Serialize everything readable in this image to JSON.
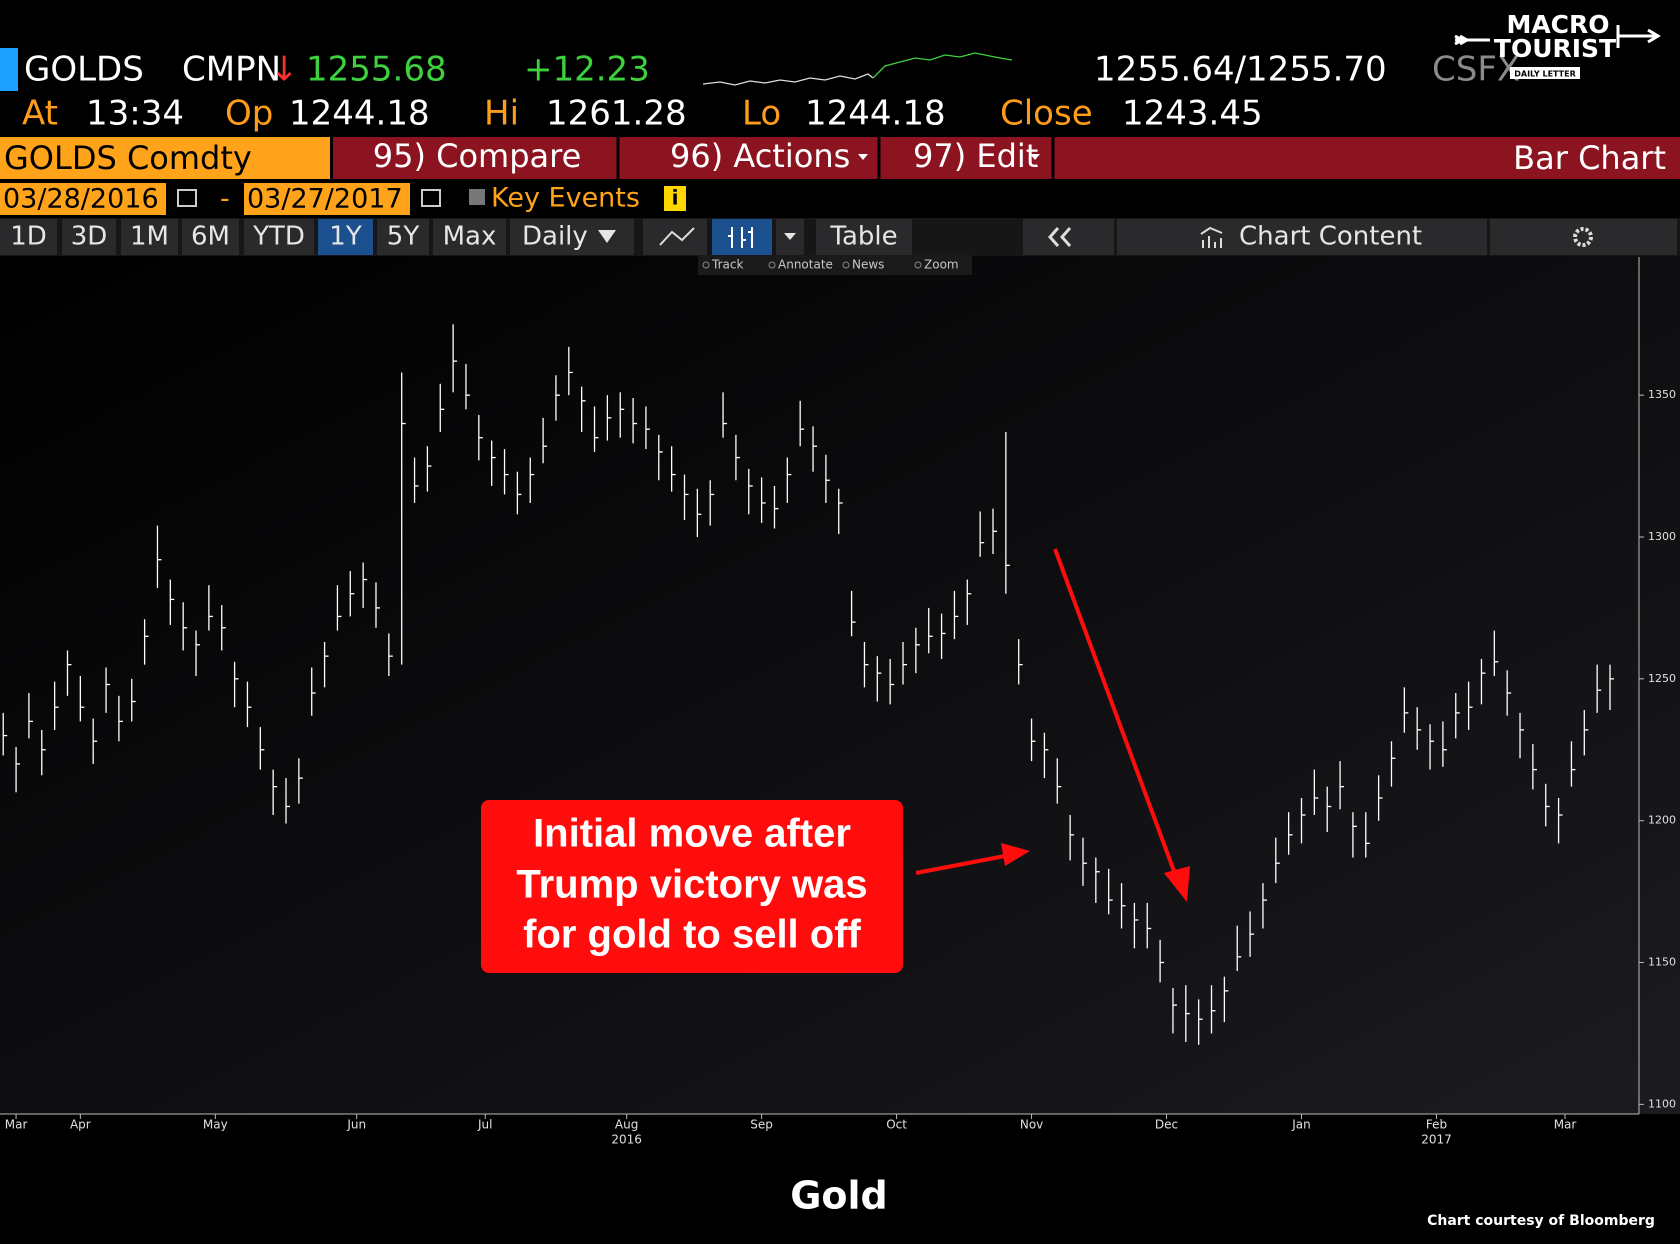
{
  "header": {
    "ticker": "GOLDS",
    "source": "CMPN",
    "change_arrow": "↓",
    "last": "1255.68",
    "change": "+12.23",
    "bid_ask": "1255.64/1255.70",
    "pricing_source": "CSFX",
    "time_label": "At",
    "time": "13:34",
    "open_label": "Op",
    "open": "1244.18",
    "high_label": "Hi",
    "high": "1261.28",
    "low_label": "Lo",
    "low": "1244.18",
    "close_label": "Close",
    "close": "1243.45"
  },
  "logo": {
    "line1": "MACRO",
    "line2": "TOURIST",
    "line3": "DAILY LETTER"
  },
  "toolbar": {
    "security": "GOLDS Comdty",
    "menus": [
      "95) Compare",
      "96) Actions",
      "97) Edit"
    ],
    "view": "Bar Chart",
    "start_date": "03/28/2016",
    "date_separator": "-",
    "end_date": "03/27/2017",
    "key_events": "Key Events",
    "info": "i",
    "periods": [
      "1D",
      "3D",
      "1M",
      "6M",
      "YTD",
      "1Y",
      "5Y",
      "Max"
    ],
    "frequency": "Daily",
    "table": "Table",
    "chart_content": "Chart Content",
    "tools": [
      "Track",
      "Annotate",
      "News",
      "Zoom"
    ]
  },
  "chart_data": {
    "type": "ohlc",
    "title": "Gold",
    "source_note": "Chart courtesy of Bloomberg",
    "annotation_lines": [
      "Initial move after",
      "Trump victory was",
      "for gold to sell off"
    ],
    "color": "#ffffff",
    "annotation_color": "#ff0d0d",
    "x": [
      0,
      2,
      4,
      6,
      8,
      10,
      12,
      14,
      16,
      18,
      20,
      22,
      24,
      26,
      28,
      30,
      32,
      34,
      36,
      38,
      40,
      42,
      44,
      46,
      48,
      50,
      52,
      54,
      56,
      58,
      60,
      62,
      64,
      66,
      68,
      70,
      72,
      74,
      76,
      78,
      80,
      82,
      84,
      86,
      88,
      90,
      92,
      94,
      96,
      98,
      100,
      102,
      104,
      106,
      108,
      110,
      112,
      114,
      116,
      118,
      120,
      122,
      124,
      126,
      128,
      130,
      132,
      134,
      136,
      138,
      140,
      142,
      144,
      146,
      148,
      150,
      152,
      154,
      156,
      158,
      160,
      162,
      164,
      166,
      168,
      170,
      172,
      174,
      176,
      178,
      180,
      182,
      184,
      186,
      188,
      190,
      192,
      194,
      196,
      198,
      200,
      202,
      204,
      206,
      208,
      210,
      212,
      214,
      216,
      218,
      220,
      222,
      224,
      226,
      228,
      230,
      232,
      234,
      236,
      238,
      240,
      242,
      244,
      246,
      248,
      250
    ],
    "high": [
      1238,
      1226,
      1245,
      1232,
      1249,
      1260,
      1251,
      1236,
      1254,
      1244,
      1250,
      1271,
      1304,
      1285,
      1277,
      1267,
      1283,
      1276,
      1256,
      1249,
      1233,
      1218,
      1215,
      1222,
      1254,
      1263,
      1283,
      1288,
      1291,
      1284,
      1266,
      1358,
      1328,
      1332,
      1354,
      1375,
      1361,
      1343,
      1334,
      1331,
      1323,
      1328,
      1342,
      1357,
      1367,
      1353,
      1346,
      1350,
      1351,
      1349,
      1346,
      1336,
      1332,
      1322,
      1317,
      1320,
      1351,
      1336,
      1324,
      1321,
      1318,
      1328,
      1348,
      1339,
      1329,
      1317,
      1281,
      1263,
      1258,
      1257,
      1263,
      1268,
      1275,
      1273,
      1281,
      1285,
      1309,
      1310,
      1337,
      1264,
      1236,
      1231,
      1222,
      1202,
      1194,
      1187,
      1183,
      1178,
      1171,
      1171,
      1158,
      1141,
      1142,
      1137,
      1142,
      1145,
      1163,
      1168,
      1178,
      1194,
      1203,
      1208,
      1218,
      1212,
      1221,
      1203,
      1203,
      1216,
      1228,
      1247,
      1240,
      1234,
      1235,
      1245,
      1249,
      1257,
      1267,
      1253,
      1238,
      1227,
      1213,
      1208,
      1228,
      1239,
      1255,
      1255
    ],
    "low": [
      1223,
      1210,
      1229,
      1216,
      1232,
      1244,
      1235,
      1220,
      1238,
      1228,
      1235,
      1255,
      1282,
      1269,
      1260,
      1251,
      1267,
      1260,
      1240,
      1233,
      1218,
      1202,
      1199,
      1206,
      1237,
      1247,
      1267,
      1272,
      1275,
      1268,
      1251,
      1255,
      1312,
      1316,
      1337,
      1351,
      1345,
      1327,
      1318,
      1315,
      1308,
      1312,
      1326,
      1341,
      1350,
      1337,
      1330,
      1334,
      1335,
      1333,
      1331,
      1320,
      1316,
      1306,
      1300,
      1304,
      1335,
      1320,
      1308,
      1305,
      1303,
      1312,
      1332,
      1323,
      1312,
      1301,
      1265,
      1247,
      1242,
      1241,
      1248,
      1252,
      1259,
      1257,
      1264,
      1269,
      1293,
      1294,
      1280,
      1248,
      1221,
      1215,
      1206,
      1186,
      1177,
      1171,
      1167,
      1162,
      1155,
      1155,
      1143,
      1125,
      1122,
      1121,
      1125,
      1129,
      1147,
      1152,
      1162,
      1178,
      1188,
      1192,
      1202,
      1196,
      1204,
      1187,
      1187,
      1200,
      1212,
      1231,
      1225,
      1218,
      1219,
      1229,
      1232,
      1241,
      1251,
      1237,
      1222,
      1211,
      1198,
      1192,
      1212,
      1223,
      1238,
      1239
    ],
    "close": [
      1230,
      1220,
      1235,
      1225,
      1240,
      1255,
      1240,
      1228,
      1248,
      1235,
      1242,
      1265,
      1292,
      1278,
      1268,
      1262,
      1272,
      1268,
      1250,
      1240,
      1225,
      1212,
      1205,
      1215,
      1245,
      1258,
      1272,
      1280,
      1285,
      1275,
      1258,
      1340,
      1318,
      1325,
      1345,
      1362,
      1350,
      1335,
      1328,
      1322,
      1315,
      1322,
      1332,
      1350,
      1358,
      1348,
      1335,
      1342,
      1345,
      1340,
      1338,
      1330,
      1322,
      1315,
      1308,
      1315,
      1340,
      1328,
      1318,
      1312,
      1310,
      1322,
      1338,
      1332,
      1320,
      1312,
      1270,
      1255,
      1252,
      1248,
      1255,
      1262,
      1265,
      1266,
      1272,
      1280,
      1298,
      1302,
      1290,
      1255,
      1228,
      1225,
      1212,
      1195,
      1185,
      1182,
      1172,
      1170,
      1165,
      1162,
      1150,
      1135,
      1132,
      1130,
      1133,
      1140,
      1152,
      1160,
      1172,
      1185,
      1195,
      1202,
      1208,
      1205,
      1212,
      1198,
      1192,
      1208,
      1222,
      1238,
      1232,
      1228,
      1225,
      1238,
      1240,
      1252,
      1256,
      1245,
      1232,
      1218,
      1205,
      1202,
      1218,
      1232,
      1246,
      1250
    ],
    "xlim": [
      -0.5,
      254.2
    ],
    "xticks": [
      {
        "value": 2,
        "label": "Mar"
      },
      {
        "value": 12,
        "label": "Apr"
      },
      {
        "value": 33,
        "label": "May"
      },
      {
        "value": 55,
        "label": "Jun"
      },
      {
        "value": 75,
        "label": "Jul"
      },
      {
        "value": 97,
        "label": "Aug"
      },
      {
        "value": 118,
        "label": "Sep"
      },
      {
        "value": 139,
        "label": "Oct"
      },
      {
        "value": 160,
        "label": "Nov"
      },
      {
        "value": 181,
        "label": "Dec"
      },
      {
        "value": 202,
        "label": "Jan"
      },
      {
        "value": 223,
        "label": "Feb"
      },
      {
        "value": 243,
        "label": "Mar"
      }
    ],
    "year_labels": [
      {
        "value": 97,
        "label": "2016"
      },
      {
        "value": 223,
        "label": "2017"
      }
    ],
    "ylim": [
      1096.6,
      1398.7
    ],
    "yticks": [
      1100,
      1150,
      1200,
      1250,
      1300,
      1350
    ],
    "grid": false,
    "y_axis_side": "right"
  }
}
